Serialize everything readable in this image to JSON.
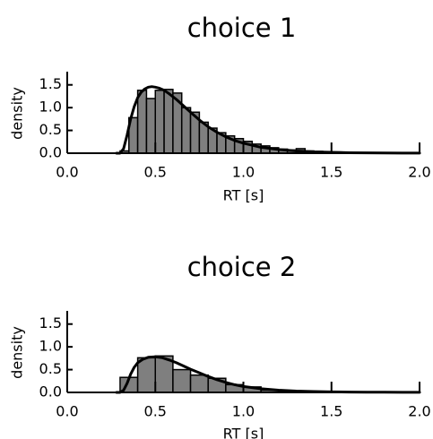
{
  "chart_data": [
    {
      "type": "bar",
      "title": "choice 1",
      "xlabel": "RT [s]",
      "ylabel": "density",
      "xlim": [
        0.0,
        2.0
      ],
      "ylim": [
        0.0,
        1.75
      ],
      "xticks": [
        "0.0",
        "0.5",
        "1.0",
        "1.5",
        "2.0"
      ],
      "yticks": [
        "0.0",
        "0.5",
        "1.0",
        "1.5"
      ],
      "bin_width": 0.05,
      "bins": [
        {
          "x0": 0.3,
          "density": 0.05
        },
        {
          "x0": 0.35,
          "density": 0.78
        },
        {
          "x0": 0.4,
          "density": 1.38
        },
        {
          "x0": 0.45,
          "density": 1.2
        },
        {
          "x0": 0.5,
          "density": 1.38
        },
        {
          "x0": 0.55,
          "density": 1.4
        },
        {
          "x0": 0.6,
          "density": 1.32
        },
        {
          "x0": 0.65,
          "density": 1.0
        },
        {
          "x0": 0.7,
          "density": 0.9
        },
        {
          "x0": 0.75,
          "density": 0.68
        },
        {
          "x0": 0.8,
          "density": 0.55
        },
        {
          "x0": 0.85,
          "density": 0.45
        },
        {
          "x0": 0.9,
          "density": 0.38
        },
        {
          "x0": 0.95,
          "density": 0.32
        },
        {
          "x0": 1.0,
          "density": 0.26
        },
        {
          "x0": 1.05,
          "density": 0.2
        },
        {
          "x0": 1.1,
          "density": 0.16
        },
        {
          "x0": 1.15,
          "density": 0.12
        },
        {
          "x0": 1.2,
          "density": 0.09
        },
        {
          "x0": 1.25,
          "density": 0.07
        },
        {
          "x0": 1.3,
          "density": 0.1
        },
        {
          "x0": 1.35,
          "density": 0.05
        },
        {
          "x0": 1.4,
          "density": 0.04
        },
        {
          "x0": 1.45,
          "density": 0.03
        },
        {
          "x0": 1.5,
          "density": 0.025
        },
        {
          "x0": 1.55,
          "density": 0.02
        },
        {
          "x0": 1.6,
          "density": 0.015
        },
        {
          "x0": 1.65,
          "density": 0.01
        },
        {
          "x0": 1.7,
          "density": 0.01
        }
      ],
      "curve": {
        "x": [
          0.28,
          0.3,
          0.32,
          0.34,
          0.36,
          0.38,
          0.4,
          0.42,
          0.44,
          0.46,
          0.48,
          0.5,
          0.52,
          0.55,
          0.58,
          0.62,
          0.66,
          0.7,
          0.75,
          0.8,
          0.85,
          0.9,
          0.95,
          1.0,
          1.1,
          1.2,
          1.3,
          1.4,
          1.5,
          1.6,
          1.7,
          1.8,
          1.9,
          2.0
        ],
        "y": [
          0.0,
          0.0,
          0.1,
          0.4,
          0.75,
          1.02,
          1.22,
          1.34,
          1.41,
          1.45,
          1.46,
          1.45,
          1.43,
          1.38,
          1.3,
          1.18,
          1.04,
          0.9,
          0.73,
          0.58,
          0.46,
          0.36,
          0.28,
          0.22,
          0.13,
          0.08,
          0.05,
          0.03,
          0.02,
          0.01,
          0.007,
          0.004,
          0.002,
          0.001
        ]
      }
    },
    {
      "type": "bar",
      "title": "choice 2",
      "xlabel": "RT [s]",
      "ylabel": "density",
      "xlim": [
        0.0,
        2.0
      ],
      "ylim": [
        0.0,
        1.75
      ],
      "xticks": [
        "0.0",
        "0.5",
        "1.0",
        "1.5",
        "2.0"
      ],
      "yticks": [
        "0.0",
        "0.5",
        "1.0",
        "1.5"
      ],
      "bin_width": 0.1,
      "bins": [
        {
          "x0": 0.3,
          "density": 0.33
        },
        {
          "x0": 0.4,
          "density": 0.76
        },
        {
          "x0": 0.5,
          "density": 0.8
        },
        {
          "x0": 0.6,
          "density": 0.5
        },
        {
          "x0": 0.7,
          "density": 0.38
        },
        {
          "x0": 0.8,
          "density": 0.31
        },
        {
          "x0": 0.9,
          "density": 0.17
        },
        {
          "x0": 1.0,
          "density": 0.12
        },
        {
          "x0": 1.1,
          "density": 0.05
        },
        {
          "x0": 1.2,
          "density": 0.03
        },
        {
          "x0": 1.3,
          "density": 0.02
        }
      ],
      "curve": {
        "x": [
          0.28,
          0.3,
          0.32,
          0.34,
          0.36,
          0.38,
          0.4,
          0.43,
          0.46,
          0.5,
          0.54,
          0.58,
          0.62,
          0.66,
          0.7,
          0.75,
          0.8,
          0.85,
          0.9,
          0.95,
          1.0,
          1.1,
          1.2,
          1.3,
          1.4,
          1.5,
          1.6,
          1.7,
          1.8,
          1.9,
          2.0
        ],
        "y": [
          0.0,
          0.0,
          0.05,
          0.2,
          0.4,
          0.55,
          0.65,
          0.73,
          0.77,
          0.78,
          0.76,
          0.71,
          0.65,
          0.58,
          0.51,
          0.43,
          0.35,
          0.28,
          0.22,
          0.17,
          0.13,
          0.08,
          0.05,
          0.03,
          0.02,
          0.012,
          0.008,
          0.005,
          0.003,
          0.002,
          0.001
        ]
      }
    }
  ]
}
